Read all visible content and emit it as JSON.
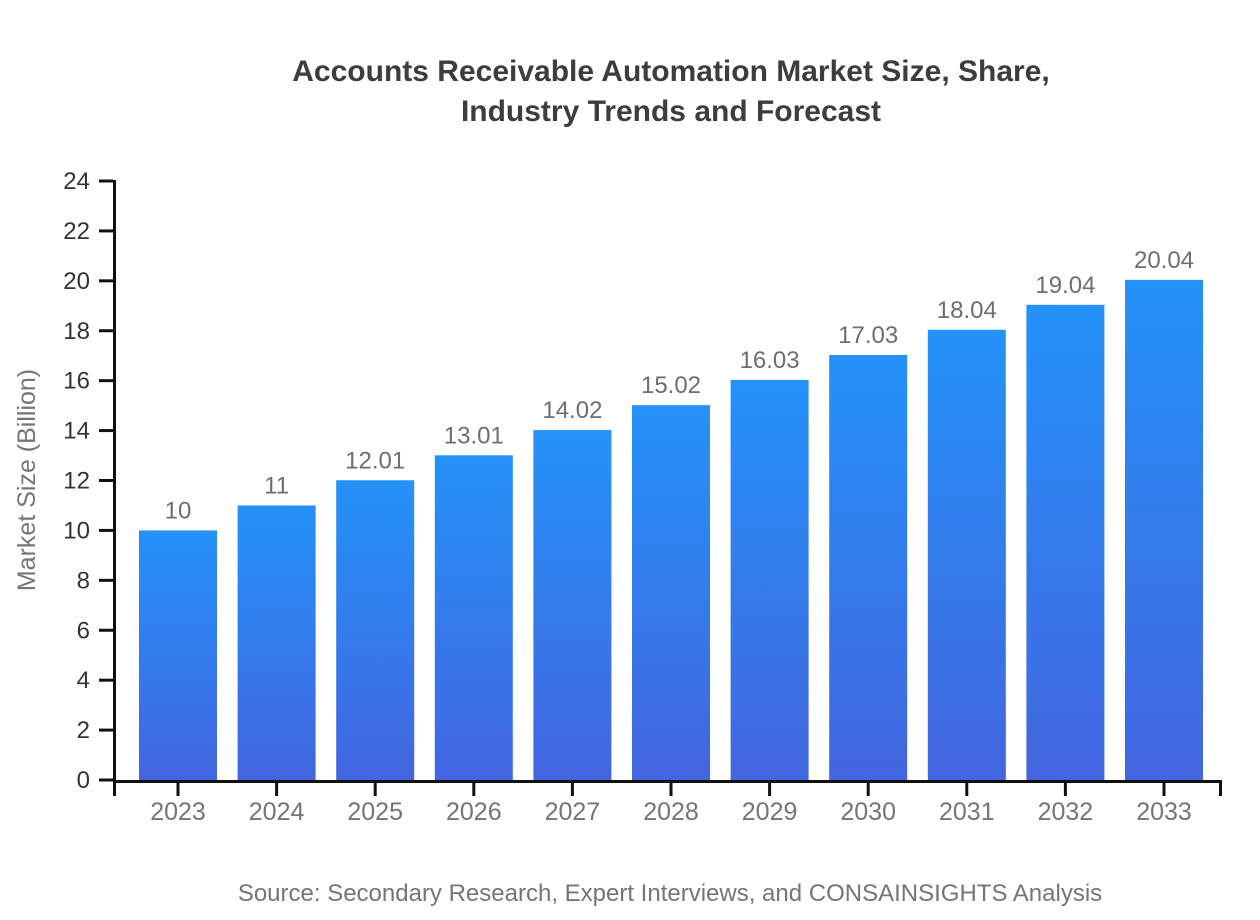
{
  "title": {
    "line1": "Accounts Receivable Automation Market Size, Share,",
    "line2": "Industry Trends and Forecast"
  },
  "source": "Source: Secondary Research, Expert Interviews, and CONSAINSIGHTS Analysis",
  "colors": {
    "title_text": "#3d3d3d",
    "axis_line": "#111111",
    "y_tick_label": "#333333",
    "x_tick_label": "#757575",
    "value_label": "#6e6e6e",
    "source_text": "#757575",
    "bar_gradient_top": "#2492F8",
    "bar_gradient_bottom": "#4365DF",
    "background": "#ffffff"
  },
  "chart_data": {
    "type": "bar",
    "title": "Accounts Receivable Automation Market Size, Share, Industry Trends and Forecast",
    "categories": [
      "2023",
      "2024",
      "2025",
      "2026",
      "2027",
      "2028",
      "2029",
      "2030",
      "2031",
      "2032",
      "2033"
    ],
    "values": [
      10,
      11,
      12.01,
      13.01,
      14.02,
      15.02,
      16.03,
      17.03,
      18.04,
      19.04,
      20.04
    ],
    "value_labels": [
      "10",
      "11",
      "12.01",
      "13.01",
      "14.02",
      "15.02",
      "16.03",
      "17.03",
      "18.04",
      "19.04",
      "20.04"
    ],
    "xlabel": "",
    "ylabel": "Market Size (Billion)",
    "ylim": [
      0,
      24
    ],
    "ytick_step": 2,
    "ytick_labels": [
      "0",
      "2",
      "4",
      "6",
      "8",
      "10",
      "12",
      "14",
      "16",
      "18",
      "20",
      "22",
      "24"
    ],
    "grid": false,
    "legend": false,
    "bar_gradient": {
      "top": "#2492F8",
      "bottom": "#4365DF"
    },
    "source_note": "Source: Secondary Research, Expert Interviews, and CONSAINSIGHTS Analysis"
  }
}
